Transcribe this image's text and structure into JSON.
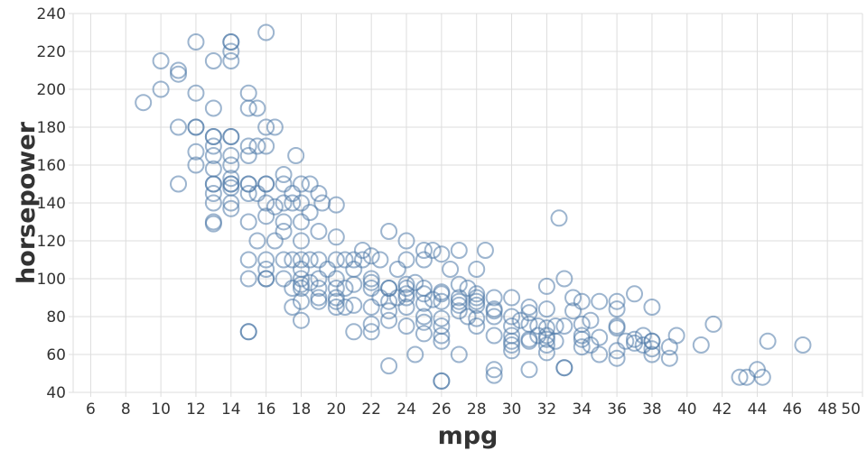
{
  "chart_data": {
    "type": "scatter",
    "xlabel": "mpg",
    "ylabel": "horsepower",
    "xlim": [
      5,
      50
    ],
    "ylim": [
      40,
      240
    ],
    "grid": true,
    "color": "#4c78a8",
    "x_ticks": [
      6,
      8,
      10,
      12,
      14,
      16,
      18,
      20,
      22,
      24,
      26,
      28,
      30,
      32,
      34,
      36,
      38,
      40,
      42,
      44,
      46,
      48,
      50
    ],
    "y_ticks": [
      40,
      60,
      80,
      100,
      120,
      140,
      160,
      180,
      200,
      220,
      240
    ],
    "points": [
      [
        9,
        193
      ],
      [
        10,
        215
      ],
      [
        10,
        200
      ],
      [
        11,
        210
      ],
      [
        11,
        208
      ],
      [
        11,
        180
      ],
      [
        11,
        150
      ],
      [
        12,
        225
      ],
      [
        12,
        198
      ],
      [
        12,
        180
      ],
      [
        12,
        180
      ],
      [
        12,
        167
      ],
      [
        12,
        160
      ],
      [
        13,
        215
      ],
      [
        13,
        190
      ],
      [
        13,
        175
      ],
      [
        13,
        175
      ],
      [
        13,
        170
      ],
      [
        13,
        165
      ],
      [
        13,
        158
      ],
      [
        13,
        150
      ],
      [
        13,
        150
      ],
      [
        13,
        145
      ],
      [
        13,
        140
      ],
      [
        13,
        130
      ],
      [
        13,
        129
      ],
      [
        14,
        225
      ],
      [
        14,
        225
      ],
      [
        14,
        220
      ],
      [
        14,
        215
      ],
      [
        14,
        175
      ],
      [
        14,
        175
      ],
      [
        14,
        165
      ],
      [
        14,
        160
      ],
      [
        14,
        153
      ],
      [
        14,
        150
      ],
      [
        14,
        150
      ],
      [
        14,
        148
      ],
      [
        14,
        140
      ],
      [
        14,
        137
      ],
      [
        15,
        198
      ],
      [
        15,
        190
      ],
      [
        15,
        170
      ],
      [
        15,
        165
      ],
      [
        15,
        150
      ],
      [
        15,
        150
      ],
      [
        15,
        145
      ],
      [
        15,
        130
      ],
      [
        15,
        110
      ],
      [
        15,
        100
      ],
      [
        15,
        72
      ],
      [
        15,
        72
      ],
      [
        15.5,
        190
      ],
      [
        15.5,
        170
      ],
      [
        15.5,
        145
      ],
      [
        15.5,
        120
      ],
      [
        16,
        230
      ],
      [
        16,
        180
      ],
      [
        16,
        170
      ],
      [
        16,
        150
      ],
      [
        16,
        150
      ],
      [
        16,
        140
      ],
      [
        16,
        133
      ],
      [
        16,
        110
      ],
      [
        16,
        105
      ],
      [
        16,
        100
      ],
      [
        16,
        100
      ],
      [
        16.5,
        180
      ],
      [
        16.5,
        138
      ],
      [
        16.5,
        120
      ],
      [
        17,
        155
      ],
      [
        17,
        150
      ],
      [
        17,
        140
      ],
      [
        17,
        130
      ],
      [
        17,
        125
      ],
      [
        17,
        110
      ],
      [
        17,
        100
      ],
      [
        17.5,
        140
      ],
      [
        17.5,
        145
      ],
      [
        17.5,
        110
      ],
      [
        17.5,
        95
      ],
      [
        17.5,
        85
      ],
      [
        17.7,
        165
      ],
      [
        18,
        150
      ],
      [
        18,
        140
      ],
      [
        18,
        130
      ],
      [
        18,
        120
      ],
      [
        18,
        110
      ],
      [
        18,
        105
      ],
      [
        18,
        100
      ],
      [
        18,
        97
      ],
      [
        18,
        95
      ],
      [
        18,
        88
      ],
      [
        18,
        78
      ],
      [
        18.5,
        150
      ],
      [
        18.5,
        135
      ],
      [
        18.5,
        110
      ],
      [
        18.5,
        98
      ],
      [
        19,
        145
      ],
      [
        19,
        125
      ],
      [
        19,
        110
      ],
      [
        19,
        100
      ],
      [
        19,
        95
      ],
      [
        19,
        90
      ],
      [
        19,
        88
      ],
      [
        19.2,
        140
      ],
      [
        19.5,
        105
      ],
      [
        20,
        139
      ],
      [
        20,
        122
      ],
      [
        20,
        110
      ],
      [
        20,
        100
      ],
      [
        20,
        95
      ],
      [
        20,
        90
      ],
      [
        20,
        88
      ],
      [
        20,
        85
      ],
      [
        20.5,
        110
      ],
      [
        20.5,
        95
      ],
      [
        20.5,
        85
      ],
      [
        21,
        110
      ],
      [
        21,
        105
      ],
      [
        21,
        97
      ],
      [
        21,
        86
      ],
      [
        21,
        72
      ],
      [
        21.5,
        115
      ],
      [
        21.5,
        110
      ],
      [
        22,
        112
      ],
      [
        22,
        100
      ],
      [
        22,
        98
      ],
      [
        22,
        95
      ],
      [
        22,
        85
      ],
      [
        22,
        76
      ],
      [
        22,
        72
      ],
      [
        22.5,
        110
      ],
      [
        22.5,
        90
      ],
      [
        23,
        125
      ],
      [
        23,
        95
      ],
      [
        23,
        95
      ],
      [
        23,
        88
      ],
      [
        23,
        83
      ],
      [
        23,
        78
      ],
      [
        23,
        54
      ],
      [
        23.5,
        105
      ],
      [
        23.5,
        90
      ],
      [
        24,
        120
      ],
      [
        24,
        110
      ],
      [
        24,
        97
      ],
      [
        24,
        95
      ],
      [
        24,
        92
      ],
      [
        24,
        90
      ],
      [
        24,
        85
      ],
      [
        24,
        75
      ],
      [
        24.5,
        60
      ],
      [
        24.5,
        98
      ],
      [
        25,
        115
      ],
      [
        25,
        110
      ],
      [
        25,
        95
      ],
      [
        25,
        92
      ],
      [
        25,
        87
      ],
      [
        25,
        80
      ],
      [
        25,
        77
      ],
      [
        25,
        71
      ],
      [
        25.5,
        115
      ],
      [
        25.5,
        89
      ],
      [
        26,
        113
      ],
      [
        26,
        93
      ],
      [
        26,
        92
      ],
      [
        26,
        88
      ],
      [
        26,
        79
      ],
      [
        26,
        75
      ],
      [
        26,
        70
      ],
      [
        26,
        67
      ],
      [
        26,
        46
      ],
      [
        26,
        46
      ],
      [
        26.5,
        105
      ],
      [
        27,
        115
      ],
      [
        27,
        97
      ],
      [
        27,
        90
      ],
      [
        27,
        88
      ],
      [
        27,
        86
      ],
      [
        27,
        83
      ],
      [
        27,
        60
      ],
      [
        27.5,
        95
      ],
      [
        27.5,
        80
      ],
      [
        28,
        105
      ],
      [
        28,
        92
      ],
      [
        28,
        90
      ],
      [
        28,
        88
      ],
      [
        28,
        86
      ],
      [
        28,
        79
      ],
      [
        28,
        75
      ],
      [
        28.5,
        115
      ],
      [
        29,
        90
      ],
      [
        29,
        84
      ],
      [
        29,
        83
      ],
      [
        29,
        80
      ],
      [
        29,
        70
      ],
      [
        29,
        52
      ],
      [
        29,
        49
      ],
      [
        30,
        90
      ],
      [
        30,
        80
      ],
      [
        30,
        75
      ],
      [
        30,
        70
      ],
      [
        30,
        67
      ],
      [
        30,
        65
      ],
      [
        30,
        62
      ],
      [
        30.5,
        78
      ],
      [
        31,
        85
      ],
      [
        31,
        82
      ],
      [
        31,
        76
      ],
      [
        31,
        68
      ],
      [
        31,
        67
      ],
      [
        31,
        52
      ],
      [
        31.5,
        75
      ],
      [
        31.5,
        70
      ],
      [
        32,
        96
      ],
      [
        32,
        84
      ],
      [
        32,
        74
      ],
      [
        32,
        70
      ],
      [
        32,
        68
      ],
      [
        32,
        65
      ],
      [
        32,
        61
      ],
      [
        32.5,
        75
      ],
      [
        32.5,
        67
      ],
      [
        32.7,
        132
      ],
      [
        33,
        100
      ],
      [
        33,
        75
      ],
      [
        33,
        53
      ],
      [
        33,
        53
      ],
      [
        33.5,
        90
      ],
      [
        33.5,
        83
      ],
      [
        34,
        88
      ],
      [
        34,
        76
      ],
      [
        34,
        70
      ],
      [
        34,
        68
      ],
      [
        34,
        64
      ],
      [
        34.5,
        78
      ],
      [
        34.5,
        65
      ],
      [
        35,
        88
      ],
      [
        35,
        69
      ],
      [
        35,
        60
      ],
      [
        36,
        88
      ],
      [
        36,
        84
      ],
      [
        36,
        75
      ],
      [
        36,
        74
      ],
      [
        36,
        62
      ],
      [
        36,
        58
      ],
      [
        36.5,
        67
      ],
      [
        37,
        92
      ],
      [
        37,
        68
      ],
      [
        37,
        66
      ],
      [
        37.5,
        70
      ],
      [
        37.5,
        65
      ],
      [
        38,
        85
      ],
      [
        38,
        67
      ],
      [
        38,
        67
      ],
      [
        38,
        63
      ],
      [
        38,
        60
      ],
      [
        39,
        64
      ],
      [
        39,
        58
      ],
      [
        39.4,
        70
      ],
      [
        40.8,
        65
      ],
      [
        41.5,
        76
      ],
      [
        43,
        48
      ],
      [
        43.4,
        48
      ],
      [
        44,
        52
      ],
      [
        44.3,
        48
      ],
      [
        44.6,
        67
      ],
      [
        46.6,
        65
      ]
    ]
  }
}
